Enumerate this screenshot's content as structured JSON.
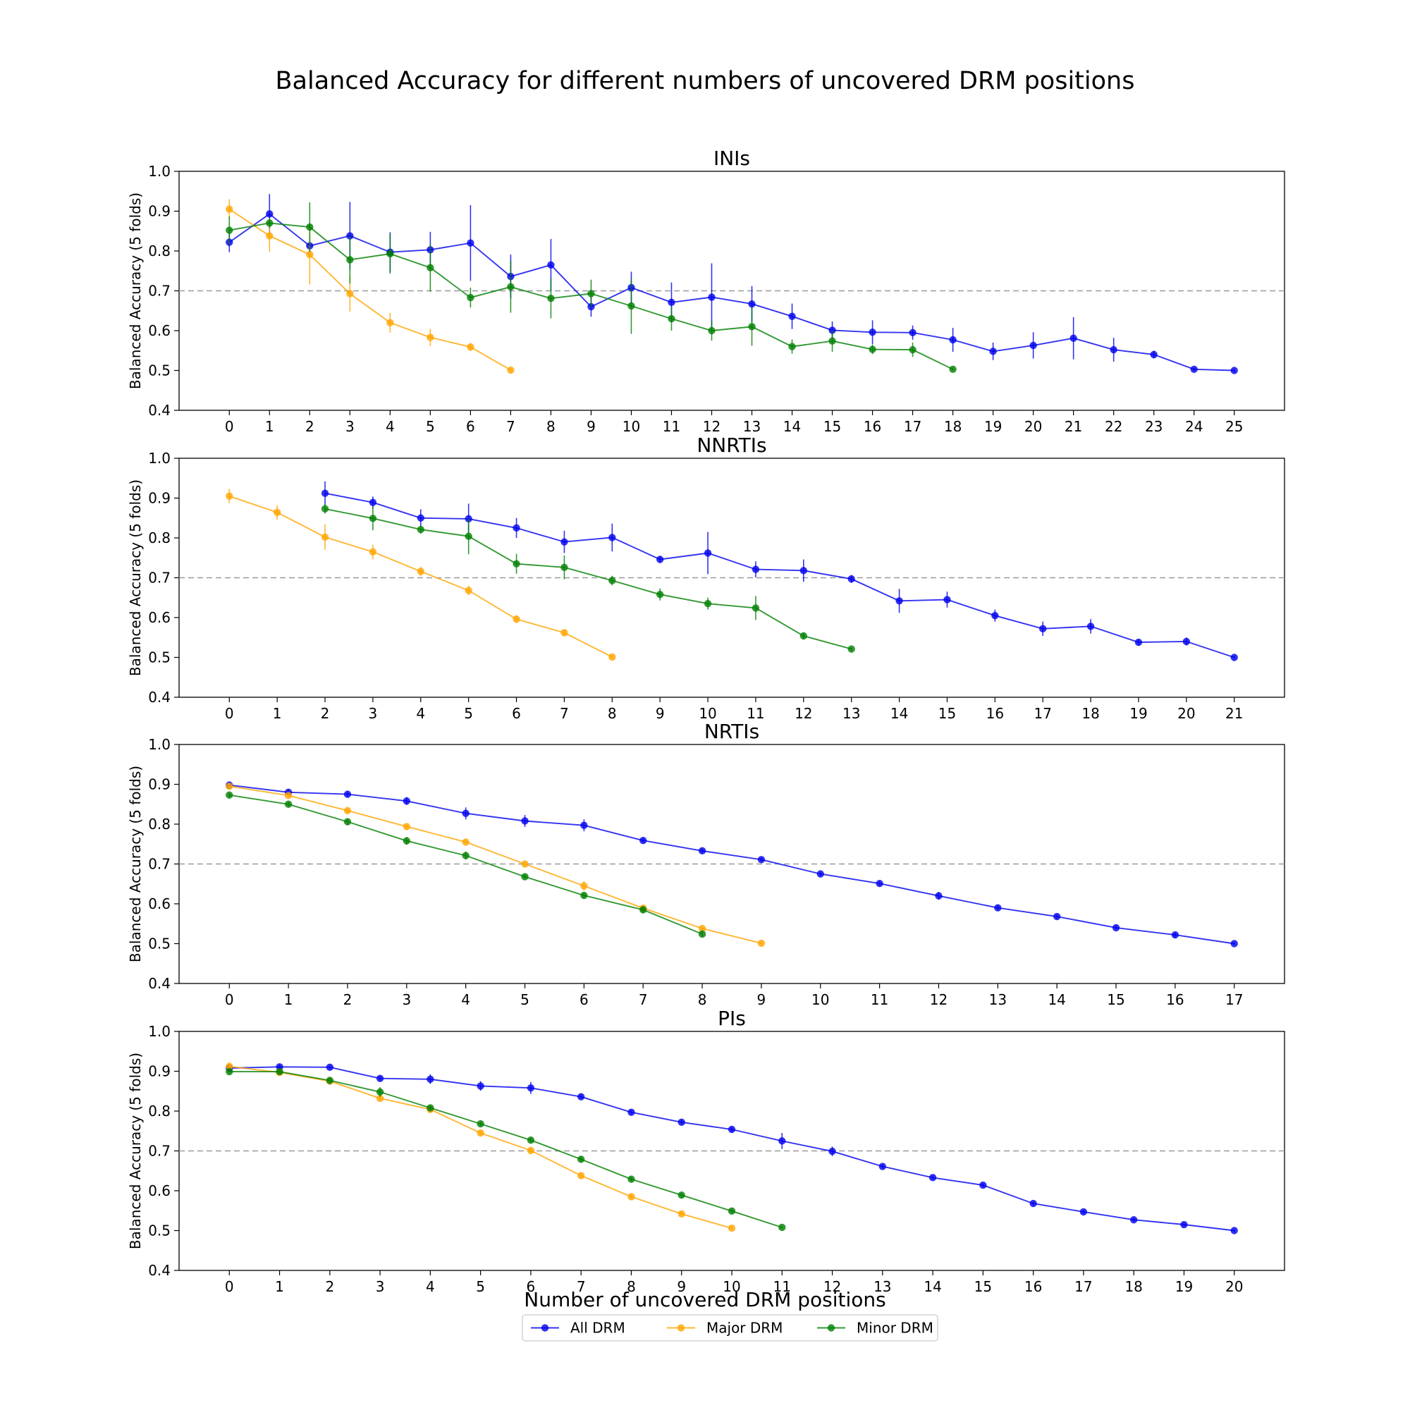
{
  "figure_title": "Balanced Accuracy for different numbers of uncovered DRM positions",
  "xlabel": "Number of uncovered DRM positions",
  "ylabel": "Balanced Accuracy (5 folds)",
  "legend": {
    "placement": "bottom-center",
    "entries": [
      {
        "name": "All DRM",
        "color": "#0000ee"
      },
      {
        "name": "Major DRM",
        "color": "#ffa500"
      },
      {
        "name": "Minor DRM",
        "color": "#008000"
      }
    ]
  },
  "chart_data": [
    {
      "type": "line",
      "title": "INIs",
      "xlabel": "",
      "ylabel": "Balanced Accuracy (5 folds)",
      "xlim": [
        -1.25,
        26.25
      ],
      "ylim": [
        0.4,
        1.0
      ],
      "xticks": [
        0,
        1,
        2,
        3,
        4,
        5,
        6,
        7,
        8,
        9,
        10,
        11,
        12,
        13,
        14,
        15,
        16,
        17,
        18,
        19,
        20,
        21,
        22,
        23,
        24,
        25
      ],
      "yticks": [
        0.4,
        0.5,
        0.6,
        0.7,
        0.8,
        0.9,
        1.0
      ],
      "reference_line": 0.7,
      "grid": false,
      "series": [
        {
          "name": "All DRM",
          "x": [
            0,
            1,
            2,
            3,
            4,
            5,
            6,
            7,
            8,
            9,
            10,
            11,
            12,
            13,
            14,
            15,
            16,
            17,
            18,
            19,
            20,
            21,
            22,
            23,
            24,
            25
          ],
          "y": [
            0.822,
            0.893,
            0.813,
            0.838,
            0.797,
            0.803,
            0.82,
            0.736,
            0.765,
            0.66,
            0.708,
            0.671,
            0.684,
            0.667,
            0.636,
            0.601,
            0.596,
            0.595,
            0.577,
            0.548,
            0.563,
            0.581,
            0.552,
            0.54,
            0.503,
            0.5
          ],
          "err": [
            0.025,
            0.05,
            0.02,
            0.085,
            0.05,
            0.045,
            0.095,
            0.055,
            0.065,
            0.025,
            0.04,
            0.05,
            0.085,
            0.045,
            0.032,
            0.022,
            0.03,
            0.018,
            0.03,
            0.022,
            0.033,
            0.053,
            0.03,
            0.01,
            0.004,
            0.004
          ]
        },
        {
          "name": "Major DRM",
          "x": [
            0,
            1,
            2,
            3,
            4,
            5,
            6,
            7
          ],
          "y": [
            0.905,
            0.838,
            0.791,
            0.693,
            0.62,
            0.583,
            0.559,
            0.501
          ],
          "err": [
            0.025,
            0.04,
            0.075,
            0.045,
            0.025,
            0.022,
            0.01,
            0.004
          ]
        },
        {
          "name": "Minor DRM",
          "x": [
            0,
            1,
            2,
            3,
            4,
            5,
            6,
            7,
            8,
            9,
            10,
            11,
            12,
            13,
            14,
            15,
            16,
            17,
            18
          ],
          "y": [
            0.852,
            0.87,
            0.86,
            0.778,
            0.793,
            0.758,
            0.683,
            0.71,
            0.681,
            0.693,
            0.662,
            0.63,
            0.6,
            0.61,
            0.56,
            0.574,
            0.553,
            0.552,
            0.503
          ],
          "err": [
            0.035,
            0.012,
            0.062,
            0.06,
            0.05,
            0.06,
            0.025,
            0.065,
            0.05,
            0.035,
            0.07,
            0.03,
            0.025,
            0.048,
            0.018,
            0.027,
            0.012,
            0.018,
            0.004
          ]
        }
      ]
    },
    {
      "type": "line",
      "title": "NNRTIs",
      "xlabel": "",
      "ylabel": "Balanced Accuracy (5 folds)",
      "xlim": [
        -1.05,
        22.05
      ],
      "ylim": [
        0.4,
        1.0
      ],
      "xticks": [
        0,
        1,
        2,
        3,
        4,
        5,
        6,
        7,
        8,
        9,
        10,
        11,
        12,
        13,
        14,
        15,
        16,
        17,
        18,
        19,
        20,
        21
      ],
      "yticks": [
        0.4,
        0.5,
        0.6,
        0.7,
        0.8,
        0.9,
        1.0
      ],
      "reference_line": 0.7,
      "grid": false,
      "series": [
        {
          "name": "All DRM",
          "x": [
            2,
            3,
            4,
            5,
            6,
            7,
            8,
            9,
            10,
            11,
            12,
            13,
            14,
            15,
            16,
            17,
            18,
            19,
            20,
            21
          ],
          "y": [
            0.912,
            0.889,
            0.85,
            0.848,
            0.825,
            0.79,
            0.801,
            0.746,
            0.762,
            0.721,
            0.718,
            0.697,
            0.642,
            0.645,
            0.605,
            0.572,
            0.578,
            0.538,
            0.54,
            0.5
          ],
          "err": [
            0.03,
            0.015,
            0.022,
            0.038,
            0.025,
            0.028,
            0.035,
            0.008,
            0.053,
            0.02,
            0.028,
            0.01,
            0.03,
            0.02,
            0.015,
            0.018,
            0.018,
            0.008,
            0.01,
            0.004
          ]
        },
        {
          "name": "Major DRM",
          "x": [
            0,
            1,
            2,
            3,
            4,
            5,
            6,
            7,
            8
          ],
          "y": [
            0.905,
            0.864,
            0.802,
            0.765,
            0.716,
            0.668,
            0.596,
            0.562,
            0.501
          ],
          "err": [
            0.018,
            0.018,
            0.032,
            0.018,
            0.012,
            0.012,
            0.01,
            0.008,
            0.004
          ]
        },
        {
          "name": "Minor DRM",
          "x": [
            2,
            3,
            4,
            5,
            6,
            7,
            8,
            9,
            10,
            11,
            12,
            13
          ],
          "y": [
            0.873,
            0.849,
            0.821,
            0.804,
            0.735,
            0.726,
            0.693,
            0.658,
            0.635,
            0.624,
            0.554,
            0.521
          ],
          "err": [
            0.012,
            0.03,
            0.01,
            0.045,
            0.025,
            0.03,
            0.012,
            0.015,
            0.015,
            0.03,
            0.008,
            0.004
          ]
        }
      ]
    },
    {
      "type": "line",
      "title": "NRTIs",
      "xlabel": "",
      "ylabel": "Balanced Accuracy (5 folds)",
      "xlim": [
        -0.85,
        17.85
      ],
      "ylim": [
        0.4,
        1.0
      ],
      "xticks": [
        0,
        1,
        2,
        3,
        4,
        5,
        6,
        7,
        8,
        9,
        10,
        11,
        12,
        13,
        14,
        15,
        16,
        17
      ],
      "yticks": [
        0.4,
        0.5,
        0.6,
        0.7,
        0.8,
        0.9,
        1.0
      ],
      "reference_line": 0.7,
      "grid": false,
      "series": [
        {
          "name": "All DRM",
          "x": [
            0,
            1,
            2,
            3,
            4,
            5,
            6,
            7,
            8,
            9,
            10,
            11,
            12,
            13,
            14,
            15,
            16,
            17
          ],
          "y": [
            0.898,
            0.88,
            0.875,
            0.858,
            0.827,
            0.808,
            0.797,
            0.759,
            0.733,
            0.711,
            0.675,
            0.651,
            0.62,
            0.59,
            0.568,
            0.54,
            0.522,
            0.5
          ],
          "err": [
            0.008,
            0.008,
            0.006,
            0.01,
            0.015,
            0.015,
            0.015,
            0.006,
            0.006,
            0.006,
            0.006,
            0.006,
            0.01,
            0.006,
            0.005,
            0.005,
            0.006,
            0.004
          ]
        },
        {
          "name": "Major DRM",
          "x": [
            0,
            1,
            2,
            3,
            4,
            5,
            6,
            7,
            8,
            9
          ],
          "y": [
            0.895,
            0.872,
            0.834,
            0.794,
            0.755,
            0.7,
            0.645,
            0.589,
            0.538,
            0.501
          ],
          "err": [
            0.006,
            0.006,
            0.006,
            0.006,
            0.006,
            0.006,
            0.012,
            0.008,
            0.005,
            0.004
          ]
        },
        {
          "name": "Minor DRM",
          "x": [
            0,
            1,
            2,
            3,
            4,
            5,
            6,
            7,
            8
          ],
          "y": [
            0.873,
            0.85,
            0.806,
            0.758,
            0.721,
            0.668,
            0.621,
            0.585,
            0.524
          ],
          "err": [
            0.006,
            0.006,
            0.008,
            0.01,
            0.01,
            0.006,
            0.006,
            0.008,
            0.006
          ]
        }
      ]
    },
    {
      "type": "line",
      "title": "PIs",
      "xlabel": "Number of uncovered DRM positions",
      "ylabel": "Balanced Accuracy (5 folds)",
      "xlim": [
        -1.0,
        21.0
      ],
      "ylim": [
        0.4,
        1.0
      ],
      "xticks": [
        0,
        1,
        2,
        3,
        4,
        5,
        6,
        7,
        8,
        9,
        10,
        11,
        12,
        13,
        14,
        15,
        16,
        17,
        18,
        19,
        20
      ],
      "yticks": [
        0.4,
        0.5,
        0.6,
        0.7,
        0.8,
        0.9,
        1.0
      ],
      "reference_line": 0.7,
      "grid": false,
      "series": [
        {
          "name": "All DRM",
          "x": [
            0,
            1,
            2,
            3,
            4,
            5,
            6,
            7,
            8,
            9,
            10,
            11,
            12,
            13,
            14,
            15,
            16,
            17,
            18,
            19,
            20
          ],
          "y": [
            0.908,
            0.911,
            0.91,
            0.882,
            0.88,
            0.863,
            0.858,
            0.836,
            0.797,
            0.772,
            0.754,
            0.725,
            0.699,
            0.661,
            0.633,
            0.614,
            0.568,
            0.547,
            0.527,
            0.515,
            0.5
          ],
          "err": [
            0.008,
            0.006,
            0.006,
            0.006,
            0.012,
            0.012,
            0.015,
            0.006,
            0.006,
            0.006,
            0.006,
            0.02,
            0.012,
            0.006,
            0.005,
            0.005,
            0.005,
            0.005,
            0.005,
            0.005,
            0.004
          ]
        },
        {
          "name": "Major DRM",
          "x": [
            0,
            1,
            2,
            3,
            4,
            5,
            6,
            7,
            8,
            9,
            10
          ],
          "y": [
            0.912,
            0.897,
            0.875,
            0.832,
            0.804,
            0.745,
            0.701,
            0.638,
            0.585,
            0.542,
            0.506
          ],
          "err": [
            0.01,
            0.006,
            0.006,
            0.006,
            0.006,
            0.006,
            0.006,
            0.006,
            0.006,
            0.006,
            0.004
          ]
        },
        {
          "name": "Minor DRM",
          "x": [
            0,
            1,
            2,
            3,
            4,
            5,
            6,
            7,
            8,
            9,
            10,
            11
          ],
          "y": [
            0.899,
            0.899,
            0.877,
            0.848,
            0.808,
            0.768,
            0.727,
            0.679,
            0.629,
            0.589,
            0.549,
            0.508
          ],
          "err": [
            0.006,
            0.006,
            0.006,
            0.012,
            0.006,
            0.006,
            0.006,
            0.006,
            0.006,
            0.006,
            0.006,
            0.004
          ]
        }
      ]
    }
  ]
}
